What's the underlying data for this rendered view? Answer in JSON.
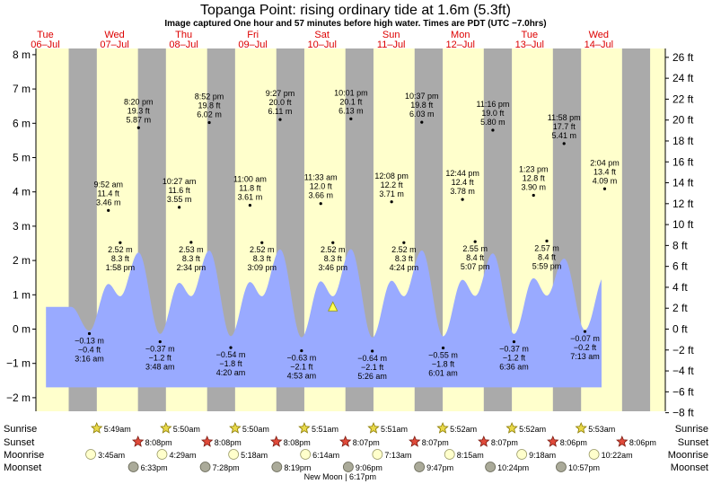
{
  "header": {
    "title": "Topanga Point: rising  ordinary tide at 1.6m (5.3ft)",
    "subtitle": "Image captured One hour and 57 minutes before high water. Times are PDT (UTC −7.0hrs)"
  },
  "days": [
    {
      "name": "Tue",
      "date": "06–Jul"
    },
    {
      "name": "Wed",
      "date": "07–Jul"
    },
    {
      "name": "Thu",
      "date": "08–Jul"
    },
    {
      "name": "Fri",
      "date": "09–Jul"
    },
    {
      "name": "Sat",
      "date": "10–Jul"
    },
    {
      "name": "Sun",
      "date": "11–Jul"
    },
    {
      "name": "Mon",
      "date": "12–Jul"
    },
    {
      "name": "Tue",
      "date": "13–Jul"
    },
    {
      "name": "Wed",
      "date": "14–Jul"
    }
  ],
  "colors": {
    "day_fill": "#ffffcc",
    "night_fill": "#aaaaaa",
    "water_fill": "#99aaff",
    "day_label": "#dd0000",
    "marker_fill": "#ffff55"
  },
  "chart_data": {
    "type": "area",
    "time_unit": "hours from Tue 06-Jul 00:00 PDT",
    "x_range": [
      0,
      210
    ],
    "ylim": [
      -2.3,
      8.2
    ],
    "ylim_ft": [
      -8.2,
      26.5
    ],
    "y_ticks_m": [
      -2,
      -1,
      0,
      1,
      2,
      3,
      4,
      5,
      6,
      7,
      8
    ],
    "y_tick_labels_m": [
      "−2 m",
      "−1 m",
      "0 m",
      "1 m",
      "2 m",
      "3 m",
      "4 m",
      "5 m",
      "6 m",
      "7 m",
      "8 m"
    ],
    "y_ticks_ft": [
      -8,
      -6,
      -4,
      -2,
      0,
      2,
      4,
      6,
      8,
      10,
      12,
      14,
      16,
      18,
      20,
      22,
      24,
      26
    ],
    "y_tick_labels_ft": [
      "−8 ft",
      "−6 ft",
      "−4 ft",
      "−2 ft",
      "0 ft",
      "2 ft",
      "4 ft",
      "6 ft",
      "8 ft",
      "10 ft",
      "12 ft",
      "14 ft",
      "16 ft",
      "18 ft",
      "20 ft",
      "22 ft",
      "24 ft",
      "26 ft"
    ],
    "curve_start_hours": 12.2,
    "curve_end_hours": 205.0,
    "current_time_hours": 111.75,
    "current_level_m": 1.6,
    "tides": [
      {
        "type": "low",
        "time": "3:16 am",
        "h_m": -0.13,
        "h_ft": -0.4,
        "label_ft": "−0.4 ft",
        "label_m": "−0.13 m",
        "day": 1
      },
      {
        "type": "high",
        "time": "9:52 am",
        "h_m": 3.46,
        "h_ft": 11.4,
        "label_ft": "11.4 ft",
        "label_m": "3.46 m",
        "day": 1
      },
      {
        "type": "low",
        "time": "1:58 pm",
        "h_m": 2.52,
        "h_ft": 8.3,
        "label_ft": "8.3 ft",
        "label_m": "2.52 m",
        "day": 1
      },
      {
        "type": "high",
        "time": "8:20 pm",
        "h_m": 5.87,
        "h_ft": 19.3,
        "label_ft": "19.3 ft",
        "label_m": "5.87 m",
        "day": 1
      },
      {
        "type": "low",
        "time": "3:48 am",
        "h_m": -0.37,
        "h_ft": -1.2,
        "label_ft": "−1.2 ft",
        "label_m": "−0.37 m",
        "day": 2
      },
      {
        "type": "high",
        "time": "10:27 am",
        "h_m": 3.55,
        "h_ft": 11.6,
        "label_ft": "11.6 ft",
        "label_m": "3.55 m",
        "day": 2
      },
      {
        "type": "low",
        "time": "2:34 pm",
        "h_m": 2.53,
        "h_ft": 8.3,
        "label_ft": "8.3 ft",
        "label_m": "2.53 m",
        "day": 2
      },
      {
        "type": "high",
        "time": "8:52 pm",
        "h_m": 6.02,
        "h_ft": 19.8,
        "label_ft": "19.8 ft",
        "label_m": "6.02 m",
        "day": 2
      },
      {
        "type": "low",
        "time": "4:20 am",
        "h_m": -0.54,
        "h_ft": -1.8,
        "label_ft": "−1.8 ft",
        "label_m": "−0.54 m",
        "day": 3
      },
      {
        "type": "high",
        "time": "11:00 am",
        "h_m": 3.61,
        "h_ft": 11.8,
        "label_ft": "11.8 ft",
        "label_m": "3.61 m",
        "day": 3
      },
      {
        "type": "low",
        "time": "3:09 pm",
        "h_m": 2.52,
        "h_ft": 8.3,
        "label_ft": "8.3 ft",
        "label_m": "2.52 m",
        "day": 3
      },
      {
        "type": "high",
        "time": "9:27 pm",
        "h_m": 6.11,
        "h_ft": 20.0,
        "label_ft": "20.0 ft",
        "label_m": "6.11 m",
        "day": 3
      },
      {
        "type": "low",
        "time": "4:53 am",
        "h_m": -0.63,
        "h_ft": -2.1,
        "label_ft": "−2.1 ft",
        "label_m": "−0.63 m",
        "day": 4
      },
      {
        "type": "high",
        "time": "11:33 am",
        "h_m": 3.66,
        "h_ft": 12.0,
        "label_ft": "12.0 ft",
        "label_m": "3.66 m",
        "day": 4
      },
      {
        "type": "low",
        "time": "3:46 pm",
        "h_m": 2.52,
        "h_ft": 8.3,
        "label_ft": "8.3 ft",
        "label_m": "2.52 m",
        "day": 4
      },
      {
        "type": "high",
        "time": "10:01 pm",
        "h_m": 6.13,
        "h_ft": 20.1,
        "label_ft": "20.1 ft",
        "label_m": "6.13 m",
        "day": 4
      },
      {
        "type": "low",
        "time": "5:26 am",
        "h_m": -0.64,
        "h_ft": -2.1,
        "label_ft": "−2.1 ft",
        "label_m": "−0.64 m",
        "day": 5
      },
      {
        "type": "high",
        "time": "12:08 pm",
        "h_m": 3.71,
        "h_ft": 12.2,
        "label_ft": "12.2 ft",
        "label_m": "3.71 m",
        "day": 5
      },
      {
        "type": "low",
        "time": "4:24 pm",
        "h_m": 2.52,
        "h_ft": 8.3,
        "label_ft": "8.3 ft",
        "label_m": "2.52 m",
        "day": 5
      },
      {
        "type": "high",
        "time": "10:37 pm",
        "h_m": 6.03,
        "h_ft": 19.8,
        "label_ft": "19.8 ft",
        "label_m": "6.03 m",
        "day": 5
      },
      {
        "type": "low",
        "time": "6:01 am",
        "h_m": -0.55,
        "h_ft": -1.8,
        "label_ft": "−1.8 ft",
        "label_m": "−0.55 m",
        "day": 6
      },
      {
        "type": "high",
        "time": "12:44 pm",
        "h_m": 3.78,
        "h_ft": 12.4,
        "label_ft": "12.4 ft",
        "label_m": "3.78 m",
        "day": 6
      },
      {
        "type": "low",
        "time": "5:07 pm",
        "h_m": 2.55,
        "h_ft": 8.4,
        "label_ft": "8.4 ft",
        "label_m": "2.55 m",
        "day": 6
      },
      {
        "type": "high",
        "time": "11:16 pm",
        "h_m": 5.8,
        "h_ft": 19.0,
        "label_ft": "19.0 ft",
        "label_m": "5.80 m",
        "day": 6
      },
      {
        "type": "low",
        "time": "6:36 am",
        "h_m": -0.37,
        "h_ft": -1.2,
        "label_ft": "−1.2 ft",
        "label_m": "−0.37 m",
        "day": 7
      },
      {
        "type": "high",
        "time": "1:23 pm",
        "h_m": 3.9,
        "h_ft": 12.8,
        "label_ft": "12.8 ft",
        "label_m": "3.90 m",
        "day": 7
      },
      {
        "type": "low",
        "time": "5:59 pm",
        "h_m": 2.57,
        "h_ft": 8.4,
        "label_ft": "8.4 ft",
        "label_m": "2.57 m",
        "day": 7
      },
      {
        "type": "high",
        "time": "11:58 pm",
        "h_m": 5.41,
        "h_ft": 17.7,
        "label_ft": "17.7 ft",
        "label_m": "5.41 m",
        "day": 7
      },
      {
        "type": "low",
        "time": "7:13 am",
        "h_m": -0.07,
        "h_ft": -0.2,
        "label_ft": "−0.2 ft",
        "label_m": "−0.07 m",
        "day": 8
      },
      {
        "type": "high",
        "time": "2:04 pm",
        "h_m": 4.09,
        "h_ft": 13.4,
        "label_ft": "13.4 ft",
        "label_m": "4.09 m",
        "day": 8
      }
    ]
  },
  "rows": {
    "labels": {
      "sunrise": "Sunrise",
      "sunset": "Sunset",
      "moonrise": "Moonrise",
      "moonset": "Moonset"
    },
    "sunrise": [
      {
        "day": 1,
        "time": "5:49am"
      },
      {
        "day": 2,
        "time": "5:50am"
      },
      {
        "day": 3,
        "time": "5:50am"
      },
      {
        "day": 4,
        "time": "5:51am"
      },
      {
        "day": 5,
        "time": "5:51am"
      },
      {
        "day": 6,
        "time": "5:52am"
      },
      {
        "day": 7,
        "time": "5:52am"
      },
      {
        "day": 8,
        "time": "5:53am"
      }
    ],
    "sunset": [
      {
        "day": 1,
        "time": "8:08pm"
      },
      {
        "day": 2,
        "time": "8:08pm"
      },
      {
        "day": 3,
        "time": "8:08pm"
      },
      {
        "day": 4,
        "time": "8:07pm"
      },
      {
        "day": 5,
        "time": "8:07pm"
      },
      {
        "day": 6,
        "time": "8:07pm"
      },
      {
        "day": 7,
        "time": "8:06pm"
      },
      {
        "day": 8,
        "time": "8:06pm"
      }
    ],
    "moonrise": [
      {
        "day": 1,
        "time": "3:45am"
      },
      {
        "day": 2,
        "time": "4:29am"
      },
      {
        "day": 3,
        "time": "5:18am"
      },
      {
        "day": 4,
        "time": "6:14am"
      },
      {
        "day": 5,
        "time": "7:13am"
      },
      {
        "day": 6,
        "time": "8:15am"
      },
      {
        "day": 7,
        "time": "9:18am"
      },
      {
        "day": 8,
        "time": "10:22am"
      }
    ],
    "moonset": [
      {
        "day": 1,
        "time": "6:33pm"
      },
      {
        "day": 2,
        "time": "7:28pm"
      },
      {
        "day": 3,
        "time": "8:19pm"
      },
      {
        "day": 4,
        "time": "9:06pm"
      },
      {
        "day": 5,
        "time": "9:47pm"
      },
      {
        "day": 6,
        "time": "10:24pm"
      },
      {
        "day": 7,
        "time": "10:57pm"
      }
    ],
    "new_moon": "New Moon | 6:17pm"
  }
}
